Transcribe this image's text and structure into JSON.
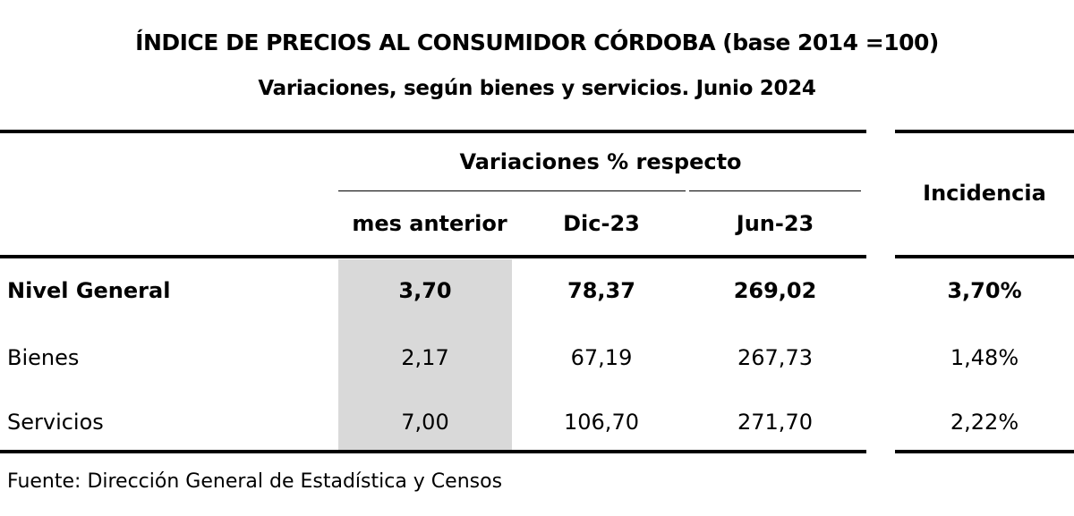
{
  "title": "ÍNDICE DE PRECIOS AL CONSUMIDOR CÓRDOBA (base 2014 =100)",
  "subtitle": "Variaciones, según bienes y servicios. Junio 2024",
  "header": {
    "group": "Variaciones % respecto",
    "col1": "mes anterior",
    "col2": "Dic-23",
    "col3": "Jun-23",
    "col4": "Incidencia"
  },
  "rows": [
    {
      "label": "Nivel General",
      "mes_anterior": "3,70",
      "dic23": "78,37",
      "jun23": "269,02",
      "incidencia": "3,70%"
    },
    {
      "label": "Bienes",
      "mes_anterior": "2,17",
      "dic23": "67,19",
      "jun23": "267,73",
      "incidencia": "1,48%"
    },
    {
      "label": "Servicios",
      "mes_anterior": "7,00",
      "dic23": "106,70",
      "jun23": "271,70",
      "incidencia": "2,22%"
    }
  ],
  "source": "Fuente: Dirección General de Estadística y Censos"
}
